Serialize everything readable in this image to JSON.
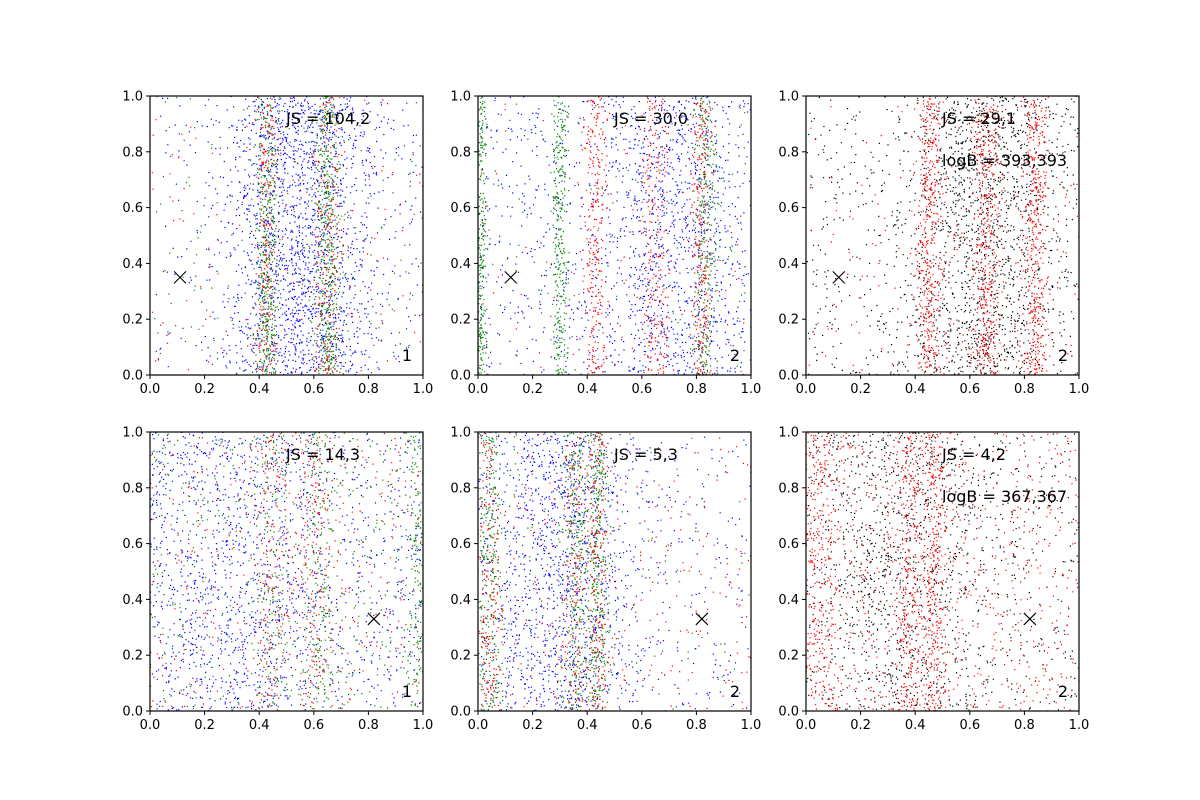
{
  "point_colors": {
    "blue": "#0000ff",
    "green": "#008000",
    "red": "#ff0000",
    "black": "#000000"
  },
  "chart_data": [
    {
      "type": "scatter",
      "panel": "top-left",
      "xlim": [
        0,
        1
      ],
      "ylim": [
        0,
        1
      ],
      "xticks": [
        "0.0",
        "0.2",
        "0.4",
        "0.6",
        "0.8",
        "1.0"
      ],
      "yticks": [
        "0.0",
        "0.2",
        "0.4",
        "0.6",
        "0.8",
        "1.0"
      ],
      "annotation_js": "JS = 104,2",
      "annotation_logb": "",
      "corner_label": "1",
      "marker": {
        "x": 0.11,
        "y": 0.35
      },
      "series": [
        {
          "color": "blue",
          "count": 2000,
          "bands": [
            {
              "center": 0.55,
              "width": 0.15
            }
          ],
          "background": 0.12
        },
        {
          "color": "green",
          "count": 1100,
          "bands": [
            {
              "center": 0.43,
              "width": 0.022
            },
            {
              "center": 0.65,
              "width": 0.025
            }
          ],
          "background": 0.15
        },
        {
          "color": "red",
          "count": 600,
          "bands": [
            {
              "center": 0.43,
              "width": 0.022
            },
            {
              "center": 0.65,
              "width": 0.025
            }
          ],
          "background": 0.25
        }
      ]
    },
    {
      "type": "scatter",
      "panel": "top-middle",
      "xlim": [
        0,
        1
      ],
      "ylim": [
        0,
        1
      ],
      "xticks": [
        "0.0",
        "0.2",
        "0.4",
        "0.6",
        "0.8",
        "1.0"
      ],
      "yticks": [
        "0.0",
        "0.2",
        "0.4",
        "0.6",
        "0.8",
        "1.0"
      ],
      "annotation_js": "JS = 30,0",
      "annotation_logb": "",
      "corner_label": "2",
      "marker": {
        "x": 0.12,
        "y": 0.35
      },
      "series": [
        {
          "color": "blue",
          "count": 1500,
          "bands": [
            {
              "center": 0.72,
              "width": 0.13
            }
          ],
          "background": 0.5
        },
        {
          "color": "red",
          "count": 900,
          "bands": [
            {
              "center": 0.43,
              "width": 0.02
            },
            {
              "center": 0.65,
              "width": 0.03
            },
            {
              "center": 0.82,
              "width": 0.02
            }
          ],
          "background": 0.1
        },
        {
          "color": "green",
          "count": 1000,
          "bands": [
            {
              "center": 0.83,
              "width": 0.022
            },
            {
              "center": 0.3,
              "width": 0.015
            },
            {
              "center": 0.01,
              "width": 0.01
            }
          ],
          "background": 0.1
        }
      ]
    },
    {
      "type": "scatter",
      "panel": "top-right",
      "xlim": [
        0,
        1
      ],
      "ylim": [
        0,
        1
      ],
      "xticks": [
        "0.0",
        "0.2",
        "0.4",
        "0.6",
        "0.8",
        "1.0"
      ],
      "yticks": [
        "0.0",
        "0.2",
        "0.4",
        "0.6",
        "0.8",
        "1.0"
      ],
      "annotation_js": "JS = 29,1",
      "annotation_logb": "logB = 393,393",
      "corner_label": "2",
      "marker": {
        "x": 0.12,
        "y": 0.35
      },
      "series": [
        {
          "color": "black",
          "count": 1900,
          "bands": [
            {
              "center": 0.65,
              "width": 0.15
            }
          ],
          "background": 0.3
        },
        {
          "color": "red",
          "count": 1500,
          "bands": [
            {
              "center": 0.45,
              "width": 0.025
            },
            {
              "center": 0.66,
              "width": 0.03
            },
            {
              "center": 0.84,
              "width": 0.025
            }
          ],
          "background": 0.1
        }
      ]
    },
    {
      "type": "scatter",
      "panel": "bottom-left",
      "xlim": [
        0,
        1
      ],
      "ylim": [
        0,
        1
      ],
      "xticks": [
        "0.0",
        "0.2",
        "0.4",
        "0.6",
        "0.8",
        "1.0"
      ],
      "yticks": [
        "0.0",
        "0.2",
        "0.4",
        "0.6",
        "0.8",
        "1.0"
      ],
      "annotation_js": "JS = 14,3",
      "annotation_logb": "",
      "corner_label": "1",
      "marker": {
        "x": 0.82,
        "y": 0.33
      },
      "series": [
        {
          "color": "blue",
          "count": 1600,
          "bands": [
            {
              "center": 0.3,
              "width": 0.2
            }
          ],
          "background": 0.6
        },
        {
          "color": "green",
          "count": 1000,
          "bands": [
            {
              "center": 0.45,
              "width": 0.03
            },
            {
              "center": 0.62,
              "width": 0.03
            },
            {
              "center": 0.98,
              "width": 0.02
            }
          ],
          "background": 0.45
        },
        {
          "color": "red",
          "count": 700,
          "bands": [
            {
              "center": 0.45,
              "width": 0.03
            },
            {
              "center": 0.6,
              "width": 0.03
            }
          ],
          "background": 0.5
        }
      ]
    },
    {
      "type": "scatter",
      "panel": "bottom-middle",
      "xlim": [
        0,
        1
      ],
      "ylim": [
        0,
        1
      ],
      "xticks": [
        "0.0",
        "0.2",
        "0.4",
        "0.6",
        "0.8",
        "1.0"
      ],
      "yticks": [
        "0.0",
        "0.2",
        "0.4",
        "0.6",
        "0.8",
        "1.0"
      ],
      "annotation_js": "JS = 5,3",
      "annotation_logb": "",
      "corner_label": "2",
      "marker": {
        "x": 0.82,
        "y": 0.33
      },
      "series": [
        {
          "color": "blue",
          "count": 1500,
          "bands": [
            {
              "center": 0.3,
              "width": 0.14
            }
          ],
          "background": 0.3
        },
        {
          "color": "green",
          "count": 1100,
          "bands": [
            {
              "center": 0.04,
              "width": 0.03
            },
            {
              "center": 0.36,
              "width": 0.03
            },
            {
              "center": 0.44,
              "width": 0.02
            }
          ],
          "background": 0.1
        },
        {
          "color": "red",
          "count": 900,
          "bands": [
            {
              "center": 0.04,
              "width": 0.03
            },
            {
              "center": 0.36,
              "width": 0.03
            },
            {
              "center": 0.44,
              "width": 0.02
            }
          ],
          "background": 0.35
        }
      ]
    },
    {
      "type": "scatter",
      "panel": "bottom-right",
      "xlim": [
        0,
        1
      ],
      "ylim": [
        0,
        1
      ],
      "xticks": [
        "0.0",
        "0.2",
        "0.4",
        "0.6",
        "0.8",
        "1.0"
      ],
      "yticks": [
        "0.0",
        "0.2",
        "0.4",
        "0.6",
        "0.8",
        "1.0"
      ],
      "annotation_js": "JS = 4,2",
      "annotation_logb": "logB = 367,367",
      "corner_label": "2",
      "marker": {
        "x": 0.82,
        "y": 0.33
      },
      "series": [
        {
          "color": "black",
          "count": 1500,
          "bands": [
            {
              "center": 0.35,
              "width": 0.18
            }
          ],
          "background": 0.4
        },
        {
          "color": "red",
          "count": 1700,
          "bands": [
            {
              "center": 0.05,
              "width": 0.04
            },
            {
              "center": 0.38,
              "width": 0.03
            },
            {
              "center": 0.47,
              "width": 0.025
            }
          ],
          "background": 0.45
        }
      ]
    }
  ]
}
